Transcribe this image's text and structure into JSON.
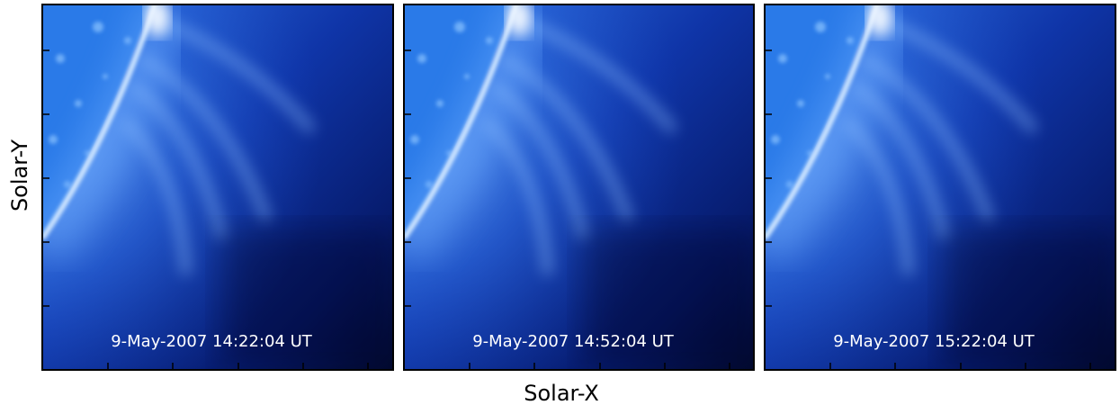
{
  "x_label": "Solar-X",
  "y_label": "Solar-Y",
  "panels": [
    {
      "timestamp": "9-May-2007 14:22:04 UT"
    },
    {
      "timestamp": "9-May-2007 14:52:04 UT"
    },
    {
      "timestamp": "9-May-2007 15:22:04 UT"
    }
  ]
}
